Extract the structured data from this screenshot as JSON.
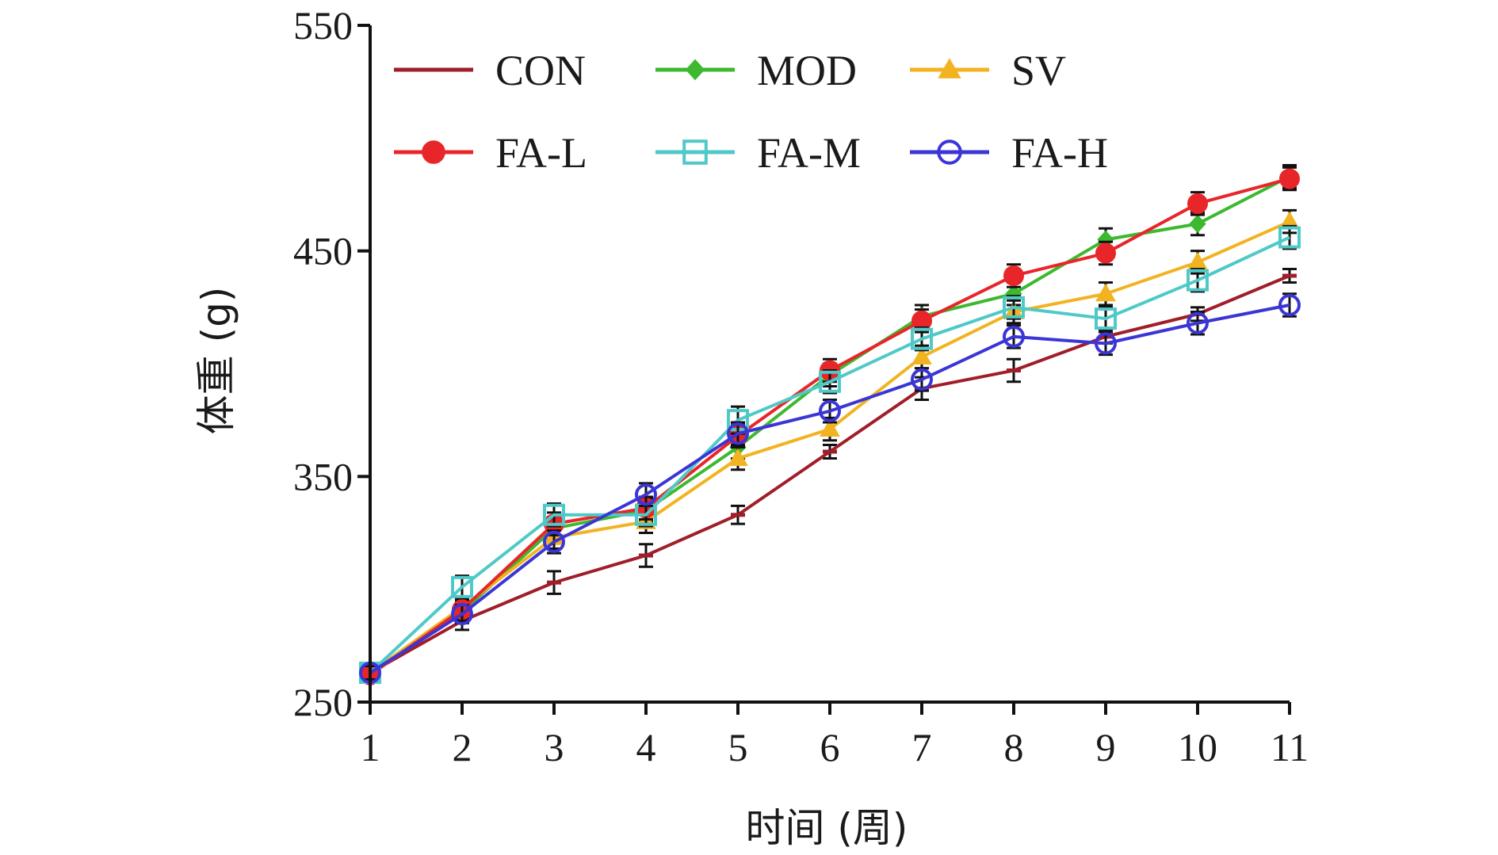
{
  "chart_data": {
    "type": "line",
    "xlabel": "时间 (周)",
    "ylabel": "体重 (g)",
    "xlim": [
      1,
      11
    ],
    "ylim": [
      250,
      550
    ],
    "x": [
      1,
      2,
      3,
      4,
      5,
      6,
      7,
      8,
      9,
      10,
      11
    ],
    "x_ticks": [
      "1",
      "2",
      "3",
      "4",
      "5",
      "6",
      "7",
      "8",
      "9",
      "10",
      "11"
    ],
    "y_ticks": [
      "250",
      "350",
      "450",
      "550"
    ],
    "legend_position": "top",
    "error_bars": true,
    "series": [
      {
        "name": "CON",
        "color": "#a01e2a",
        "marker": "dash",
        "values": [
          263,
          286,
          303,
          315,
          333,
          361,
          389,
          397,
          412,
          422,
          439
        ],
        "errors": [
          3,
          4,
          5,
          5,
          4,
          3,
          5,
          5,
          3,
          3,
          3
        ]
      },
      {
        "name": "MOD",
        "color": "#3cb92e",
        "marker": "diamond",
        "values": [
          263,
          290,
          327,
          335,
          363,
          395,
          421,
          431,
          455,
          462,
          483
        ],
        "errors": [
          3,
          4,
          5,
          5,
          5,
          5,
          5,
          5,
          5,
          5,
          5
        ]
      },
      {
        "name": "SV",
        "color": "#f2b321",
        "marker": "triangle",
        "values": [
          263,
          292,
          323,
          330,
          358,
          371,
          403,
          423,
          431,
          445,
          463
        ],
        "errors": [
          3,
          4,
          5,
          5,
          5,
          5,
          5,
          5,
          5,
          5,
          5
        ]
      },
      {
        "name": "FA-L",
        "color": "#e8262a",
        "marker": "filled-circle",
        "values": [
          262,
          291,
          329,
          336,
          368,
          397,
          419,
          439,
          449,
          471,
          482
        ],
        "errors": [
          3,
          4,
          5,
          5,
          5,
          5,
          5,
          5,
          5,
          5,
          5
        ]
      },
      {
        "name": "FA-M",
        "color": "#4fc9c8",
        "marker": "open-square",
        "values": [
          263,
          301,
          333,
          333,
          375,
          392,
          411,
          425,
          420,
          437,
          456
        ],
        "errors": [
          3,
          5,
          5,
          5,
          6,
          5,
          5,
          5,
          5,
          5,
          5
        ]
      },
      {
        "name": "FA-H",
        "color": "#3b35d6",
        "marker": "open-circle",
        "values": [
          263,
          289,
          321,
          342,
          369,
          379,
          393,
          412,
          409,
          418,
          426
        ],
        "errors": [
          3,
          4,
          5,
          5,
          5,
          5,
          5,
          5,
          5,
          5,
          5
        ]
      }
    ]
  }
}
